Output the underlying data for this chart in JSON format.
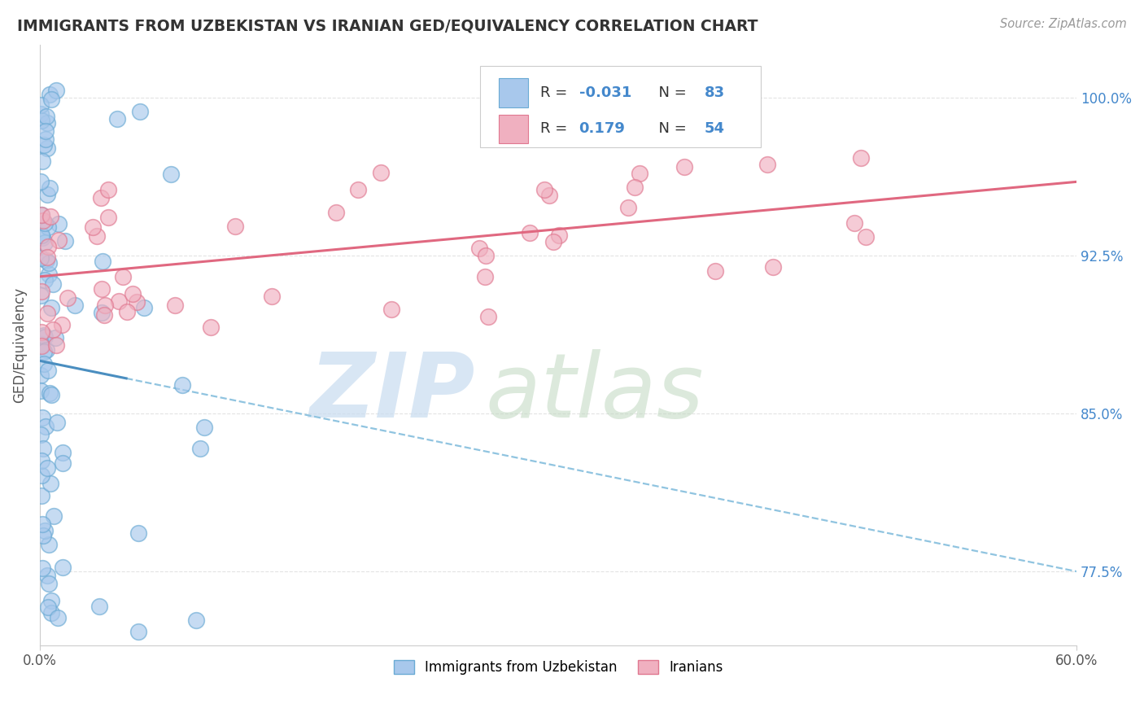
{
  "title": "IMMIGRANTS FROM UZBEKISTAN VS IRANIAN GED/EQUIVALENCY CORRELATION CHART",
  "source": "Source: ZipAtlas.com",
  "xmin": 0.0,
  "xmax": 60.0,
  "ymin": 74.0,
  "ymax": 102.5,
  "yticks": [
    77.5,
    85.0,
    92.5,
    100.0
  ],
  "xticks": [
    0.0,
    60.0
  ],
  "color_uzbek_fill": "#A8C8EC",
  "color_uzbek_edge": "#6AAAD4",
  "color_iran_fill": "#F0B0C0",
  "color_iran_edge": "#E07890",
  "color_uzbek_line_solid": "#4A8EC0",
  "color_uzbek_line_dash": "#90C4E0",
  "color_iran_line": "#E06880",
  "color_ytick": "#4488CC",
  "color_grid": "#DDDDDD",
  "legend_box_edge": "#CCCCCC",
  "watermark_zip_color": "#C8DCF0",
  "watermark_atlas_color": "#C0D8C0",
  "uzbek_line_x0": 0.0,
  "uzbek_line_y0": 87.5,
  "uzbek_line_x1": 60.0,
  "uzbek_line_y1": 77.5,
  "uzbek_solid_x1": 5.0,
  "iran_line_x0": 0.0,
  "iran_line_y0": 91.5,
  "iran_line_x1": 60.0,
  "iran_line_y1": 96.0
}
